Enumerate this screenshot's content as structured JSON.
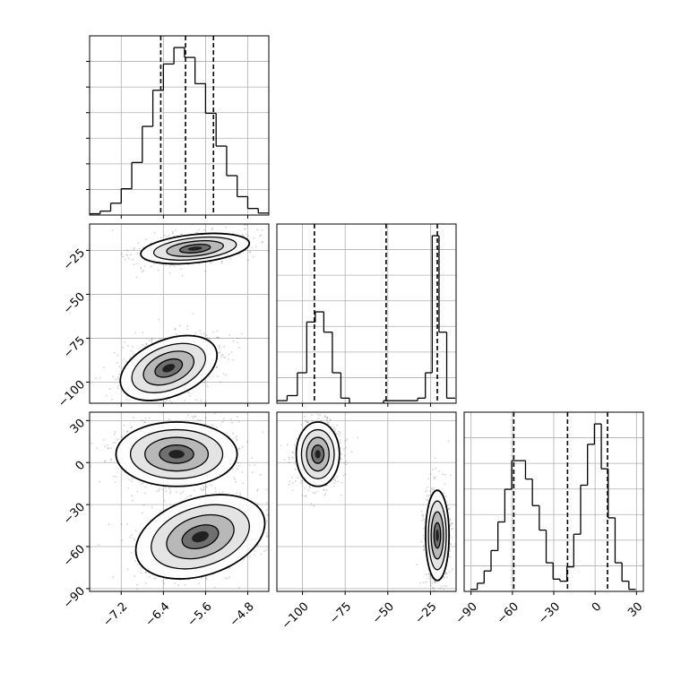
{
  "chart_data": {
    "type": "corner",
    "grid": true,
    "axes": [
      {
        "id": "p0",
        "kind": "histogram",
        "xlim": [
          -7.8,
          -4.4
        ],
        "x_ticks": [
          -7.2,
          -6.4,
          -5.6,
          -4.8
        ],
        "quantile_lines": [
          -6.45,
          -5.98,
          -5.45
        ],
        "bins": [
          {
            "x": -7.7,
            "count": 2
          },
          {
            "x": -7.5,
            "count": 6
          },
          {
            "x": -7.3,
            "count": 18
          },
          {
            "x": -7.1,
            "count": 40
          },
          {
            "x": -6.9,
            "count": 80
          },
          {
            "x": -6.7,
            "count": 135
          },
          {
            "x": -6.5,
            "count": 190
          },
          {
            "x": -6.3,
            "count": 230
          },
          {
            "x": -6.1,
            "count": 255
          },
          {
            "x": -5.9,
            "count": 240
          },
          {
            "x": -5.7,
            "count": 200
          },
          {
            "x": -5.5,
            "count": 155
          },
          {
            "x": -5.3,
            "count": 105
          },
          {
            "x": -5.1,
            "count": 60
          },
          {
            "x": -4.9,
            "count": 28
          },
          {
            "x": -4.7,
            "count": 10
          },
          {
            "x": -4.5,
            "count": 3
          }
        ]
      },
      {
        "id": "p1",
        "kind": "histogram",
        "xlim": [
          -115,
          -10
        ],
        "x_ticks": [
          -100,
          -75,
          -50,
          -25
        ],
        "quantile_lines": [
          -93,
          -51,
          -21
        ],
        "bins": [
          {
            "x": -112,
            "count": 1
          },
          {
            "x": -106,
            "count": 3
          },
          {
            "x": -100,
            "count": 12
          },
          {
            "x": -95,
            "count": 32
          },
          {
            "x": -90,
            "count": 36
          },
          {
            "x": -85,
            "count": 28
          },
          {
            "x": -80,
            "count": 12
          },
          {
            "x": -75,
            "count": 2
          },
          {
            "x": -70,
            "count": 0
          },
          {
            "x": -35,
            "count": 1
          },
          {
            "x": -30,
            "count": 2
          },
          {
            "x": -26,
            "count": 12
          },
          {
            "x": -22,
            "count": 66
          },
          {
            "x": -18,
            "count": 28
          },
          {
            "x": -13,
            "count": 2
          }
        ]
      },
      {
        "id": "p2",
        "kind": "histogram",
        "xlim": [
          -95,
          35
        ],
        "x_ticks": [
          -90,
          -60,
          -30,
          0,
          30
        ],
        "quantile_lines": [
          -59,
          -20,
          9
        ],
        "bins": [
          {
            "x": -88,
            "count": 1
          },
          {
            "x": -83,
            "count": 4
          },
          {
            "x": -78,
            "count": 10
          },
          {
            "x": -73,
            "count": 20
          },
          {
            "x": -68,
            "count": 34
          },
          {
            "x": -63,
            "count": 50
          },
          {
            "x": -58,
            "count": 64
          },
          {
            "x": -53,
            "count": 64
          },
          {
            "x": -48,
            "count": 55
          },
          {
            "x": -43,
            "count": 42
          },
          {
            "x": -38,
            "count": 30
          },
          {
            "x": -33,
            "count": 14
          },
          {
            "x": -28,
            "count": 6
          },
          {
            "x": -23,
            "count": 5
          },
          {
            "x": -18,
            "count": 12
          },
          {
            "x": -13,
            "count": 28
          },
          {
            "x": -8,
            "count": 52
          },
          {
            "x": -3,
            "count": 72
          },
          {
            "x": 2,
            "count": 82
          },
          {
            "x": 7,
            "count": 60
          },
          {
            "x": 12,
            "count": 36
          },
          {
            "x": 17,
            "count": 14
          },
          {
            "x": 22,
            "count": 5
          },
          {
            "x": 27,
            "count": 1
          }
        ]
      },
      {
        "id": "p0_p1",
        "kind": "density2d",
        "xlim": [
          -7.8,
          -4.4
        ],
        "ylim": [
          -112,
          -10
        ],
        "y_ticks": [
          -100,
          -75,
          -50,
          -25
        ],
        "modes": [
          {
            "x": -5.8,
            "y": -24,
            "sx": 0.45,
            "sy": 3.5,
            "rotation_deg": -6,
            "weight": 0.5
          },
          {
            "x": -6.3,
            "y": -92,
            "sx": 0.42,
            "sy": 7,
            "rotation_deg": -22,
            "weight": 0.5
          }
        ]
      },
      {
        "id": "p0_p2",
        "kind": "density2d",
        "xlim": [
          -7.8,
          -4.4
        ],
        "ylim": [
          -92,
          36
        ],
        "x_ticks": [
          -7.2,
          -6.4,
          -5.6,
          -4.8
        ],
        "y_ticks": [
          -90,
          -60,
          -30,
          0,
          30
        ],
        "modes": [
          {
            "x": -6.15,
            "y": 6,
            "sx": 0.5,
            "sy": 10,
            "rotation_deg": 0,
            "weight": 0.5
          },
          {
            "x": -5.7,
            "y": -53,
            "sx": 0.55,
            "sy": 12,
            "rotation_deg": -18,
            "weight": 0.5
          }
        ]
      },
      {
        "id": "p1_p2",
        "kind": "density2d",
        "xlim": [
          -115,
          -10
        ],
        "ylim": [
          -92,
          36
        ],
        "x_ticks": [
          -100,
          -75,
          -50,
          -25
        ],
        "modes": [
          {
            "x": -91,
            "y": 6,
            "sx": 5.5,
            "sy": 10,
            "rotation_deg": 0,
            "weight": 0.5
          },
          {
            "x": -21,
            "y": -52,
            "sx": 3,
            "sy": 14,
            "rotation_deg": 0,
            "weight": 0.5
          }
        ]
      }
    ]
  }
}
